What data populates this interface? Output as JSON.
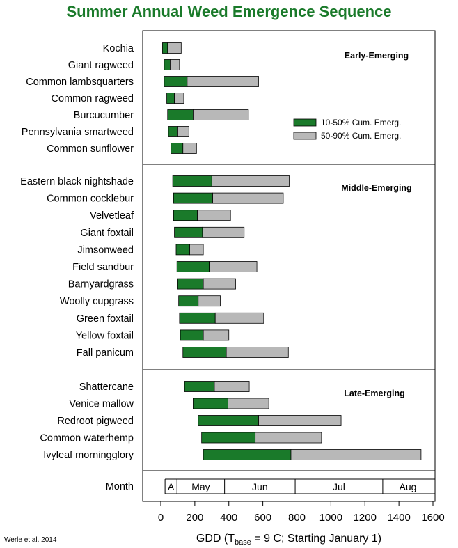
{
  "title": "Summer Annual Weed Emergence Sequence",
  "credit": "Werle et al. 2014",
  "colors": {
    "early_bar": "#1a7a2a",
    "late_bar": "#b8b8b8",
    "title": "#1a7a2a"
  },
  "chart_data": {
    "type": "bar",
    "orientation": "horizontal",
    "stacked_ranges": true,
    "xlabel_parts": {
      "prefix": "GDD (T",
      "sub": "base",
      "suffix": " = 9 C; Starting January 1)"
    },
    "xlabel": "GDD (Tbase = 9 C; Starting January 1)",
    "xlim": [
      -100,
      1600
    ],
    "xticks": [
      0,
      200,
      400,
      600,
      800,
      1000,
      1200,
      1400,
      1600
    ],
    "grid": false,
    "legend_position": "top-right",
    "legend": [
      "10-50% Cum. Emerg.",
      "50-90% Cum. Emerg."
    ],
    "groups": [
      {
        "label": "Early-Emerging",
        "weeds": [
          {
            "name": "Kochia",
            "start": 10,
            "mid": 40,
            "end": 120
          },
          {
            "name": "Giant ragweed",
            "start": 20,
            "mid": 55,
            "end": 110
          },
          {
            "name": "Common lambsquarters",
            "start": 20,
            "mid": 155,
            "end": 575
          },
          {
            "name": "Common ragweed",
            "start": 35,
            "mid": 80,
            "end": 135
          },
          {
            "name": "Burcucumber",
            "start": 40,
            "mid": 190,
            "end": 515
          },
          {
            "name": "Pennsylvania smartweed",
            "start": 45,
            "mid": 100,
            "end": 165
          },
          {
            "name": "Common sunflower",
            "start": 60,
            "mid": 130,
            "end": 210
          }
        ]
      },
      {
        "label": "Middle-Emerging",
        "weeds": [
          {
            "name": "Eastern black nightshade",
            "start": 70,
            "mid": 300,
            "end": 755
          },
          {
            "name": "Common cocklebur",
            "start": 75,
            "mid": 305,
            "end": 720
          },
          {
            "name": "Velvetleaf",
            "start": 75,
            "mid": 215,
            "end": 410
          },
          {
            "name": "Giant foxtail",
            "start": 80,
            "mid": 245,
            "end": 490
          },
          {
            "name": "Jimsonweed",
            "start": 90,
            "mid": 170,
            "end": 250
          },
          {
            "name": "Field sandbur",
            "start": 95,
            "mid": 285,
            "end": 565
          },
          {
            "name": "Barnyardgrass",
            "start": 100,
            "mid": 250,
            "end": 440
          },
          {
            "name": "Woolly cupgrass",
            "start": 105,
            "mid": 220,
            "end": 350
          },
          {
            "name": "Green foxtail",
            "start": 110,
            "mid": 320,
            "end": 605
          },
          {
            "name": "Yellow foxtail",
            "start": 115,
            "mid": 250,
            "end": 400
          },
          {
            "name": "Fall panicum",
            "start": 130,
            "mid": 385,
            "end": 750
          }
        ]
      },
      {
        "label": "Late-Emerging",
        "weeds": [
          {
            "name": "Shattercane",
            "start": 140,
            "mid": 315,
            "end": 520
          },
          {
            "name": "Venice mallow",
            "start": 190,
            "mid": 395,
            "end": 635
          },
          {
            "name": "Redroot pigweed",
            "start": 220,
            "mid": 575,
            "end": 1060
          },
          {
            "name": "Common waterhemp",
            "start": 240,
            "mid": 555,
            "end": 945
          },
          {
            "name": "Ivyleaf morningglory",
            "start": 250,
            "mid": 765,
            "end": 1530
          }
        ]
      }
    ],
    "month_row": {
      "label": "Month",
      "months": [
        {
          "name": "A",
          "start": 25,
          "end": 95
        },
        {
          "name": "May",
          "start": 95,
          "end": 375
        },
        {
          "name": "Jun",
          "start": 375,
          "end": 790
        },
        {
          "name": "Jul",
          "start": 790,
          "end": 1305
        },
        {
          "name": "Aug",
          "start": 1305,
          "end": 1600
        }
      ]
    }
  }
}
